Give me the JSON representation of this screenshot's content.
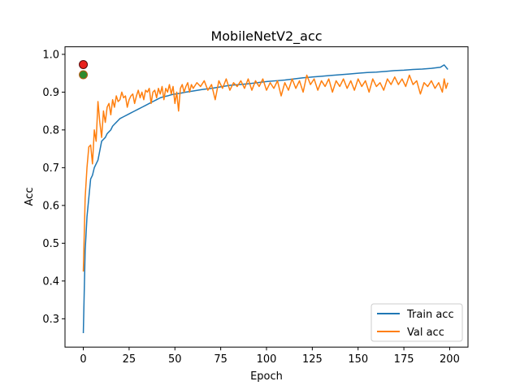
{
  "chart_data": {
    "type": "line",
    "title": "MobileNetV2_acc",
    "xlabel": "Epoch",
    "ylabel": "Acc",
    "xlim": [
      -10,
      210
    ],
    "ylim": [
      0.225,
      1.02
    ],
    "x_ticks": [
      0,
      25,
      50,
      75,
      100,
      125,
      150,
      175,
      200
    ],
    "y_ticks": [
      0.3,
      0.4,
      0.5,
      0.6,
      0.7,
      0.8,
      0.9,
      1.0
    ],
    "x_tick_labels": [
      "0",
      "25",
      "50",
      "75",
      "100",
      "125",
      "150",
      "175",
      "200"
    ],
    "y_tick_labels": [
      "0.3",
      "0.4",
      "0.5",
      "0.6",
      "0.7",
      "0.8",
      "0.9",
      "1.0"
    ],
    "grid": false,
    "legend_position": "lower-right",
    "series": [
      {
        "name": "Train acc",
        "color": "#1f77b4",
        "points": [
          [
            0,
            0.262
          ],
          [
            1,
            0.48
          ],
          [
            2,
            0.57
          ],
          [
            3,
            0.62
          ],
          [
            4,
            0.67
          ],
          [
            5,
            0.68
          ],
          [
            6,
            0.7
          ],
          [
            7,
            0.71
          ],
          [
            8,
            0.72
          ],
          [
            9,
            0.745
          ],
          [
            10,
            0.77
          ],
          [
            11,
            0.775
          ],
          [
            12,
            0.78
          ],
          [
            13,
            0.79
          ],
          [
            14,
            0.795
          ],
          [
            15,
            0.8
          ],
          [
            16,
            0.81
          ],
          [
            17,
            0.815
          ],
          [
            18,
            0.82
          ],
          [
            19,
            0.825
          ],
          [
            20,
            0.83
          ],
          [
            22,
            0.835
          ],
          [
            24,
            0.84
          ],
          [
            26,
            0.845
          ],
          [
            28,
            0.85
          ],
          [
            30,
            0.855
          ],
          [
            32,
            0.86
          ],
          [
            34,
            0.865
          ],
          [
            36,
            0.87
          ],
          [
            38,
            0.875
          ],
          [
            40,
            0.88
          ],
          [
            42,
            0.885
          ],
          [
            44,
            0.888
          ],
          [
            46,
            0.89
          ],
          [
            48,
            0.893
          ],
          [
            50,
            0.895
          ],
          [
            53,
            0.897
          ],
          [
            56,
            0.9
          ],
          [
            60,
            0.903
          ],
          [
            65,
            0.907
          ],
          [
            70,
            0.91
          ],
          [
            75,
            0.914
          ],
          [
            80,
            0.918
          ],
          [
            85,
            0.92
          ],
          [
            90,
            0.922
          ],
          [
            95,
            0.925
          ],
          [
            100,
            0.928
          ],
          [
            105,
            0.93
          ],
          [
            110,
            0.932
          ],
          [
            115,
            0.935
          ],
          [
            120,
            0.938
          ],
          [
            125,
            0.94
          ],
          [
            130,
            0.942
          ],
          [
            135,
            0.944
          ],
          [
            140,
            0.946
          ],
          [
            145,
            0.948
          ],
          [
            150,
            0.95
          ],
          [
            155,
            0.952
          ],
          [
            160,
            0.953
          ],
          [
            165,
            0.955
          ],
          [
            170,
            0.957
          ],
          [
            175,
            0.958
          ],
          [
            180,
            0.96
          ],
          [
            185,
            0.961
          ],
          [
            190,
            0.963
          ],
          [
            195,
            0.966
          ],
          [
            197,
            0.972
          ],
          [
            199,
            0.96
          ]
        ]
      },
      {
        "name": "Val acc",
        "color": "#ff7f0e",
        "points": [
          [
            0,
            0.425
          ],
          [
            1,
            0.62
          ],
          [
            2,
            0.7
          ],
          [
            3,
            0.755
          ],
          [
            4,
            0.76
          ],
          [
            5,
            0.71
          ],
          [
            6,
            0.8
          ],
          [
            7,
            0.77
          ],
          [
            8,
            0.875
          ],
          [
            9,
            0.82
          ],
          [
            10,
            0.78
          ],
          [
            11,
            0.85
          ],
          [
            12,
            0.82
          ],
          [
            13,
            0.86
          ],
          [
            14,
            0.87
          ],
          [
            15,
            0.84
          ],
          [
            16,
            0.88
          ],
          [
            17,
            0.86
          ],
          [
            18,
            0.89
          ],
          [
            19,
            0.875
          ],
          [
            20,
            0.88
          ],
          [
            21,
            0.9
          ],
          [
            22,
            0.885
          ],
          [
            23,
            0.89
          ],
          [
            24,
            0.86
          ],
          [
            25,
            0.88
          ],
          [
            26,
            0.89
          ],
          [
            27,
            0.895
          ],
          [
            28,
            0.87
          ],
          [
            29,
            0.89
          ],
          [
            30,
            0.905
          ],
          [
            31,
            0.885
          ],
          [
            32,
            0.9
          ],
          [
            33,
            0.88
          ],
          [
            34,
            0.905
          ],
          [
            35,
            0.9
          ],
          [
            36,
            0.91
          ],
          [
            37,
            0.87
          ],
          [
            38,
            0.9
          ],
          [
            39,
            0.905
          ],
          [
            40,
            0.885
          ],
          [
            41,
            0.91
          ],
          [
            42,
            0.895
          ],
          [
            43,
            0.915
          ],
          [
            44,
            0.88
          ],
          [
            45,
            0.91
          ],
          [
            46,
            0.9
          ],
          [
            47,
            0.92
          ],
          [
            48,
            0.895
          ],
          [
            49,
            0.915
          ],
          [
            50,
            0.87
          ],
          [
            51,
            0.9
          ],
          [
            52,
            0.85
          ],
          [
            53,
            0.91
          ],
          [
            54,
            0.92
          ],
          [
            55,
            0.9
          ],
          [
            56,
            0.915
          ],
          [
            57,
            0.925
          ],
          [
            58,
            0.9
          ],
          [
            59,
            0.92
          ],
          [
            60,
            0.91
          ],
          [
            62,
            0.925
          ],
          [
            64,
            0.915
          ],
          [
            66,
            0.93
          ],
          [
            68,
            0.905
          ],
          [
            70,
            0.92
          ],
          [
            72,
            0.88
          ],
          [
            74,
            0.93
          ],
          [
            76,
            0.91
          ],
          [
            78,
            0.935
          ],
          [
            80,
            0.905
          ],
          [
            82,
            0.925
          ],
          [
            84,
            0.915
          ],
          [
            86,
            0.93
          ],
          [
            88,
            0.91
          ],
          [
            90,
            0.935
          ],
          [
            92,
            0.905
          ],
          [
            94,
            0.93
          ],
          [
            96,
            0.915
          ],
          [
            98,
            0.935
          ],
          [
            100,
            0.905
          ],
          [
            102,
            0.925
          ],
          [
            104,
            0.91
          ],
          [
            106,
            0.93
          ],
          [
            108,
            0.89
          ],
          [
            110,
            0.925
          ],
          [
            112,
            0.905
          ],
          [
            114,
            0.935
          ],
          [
            116,
            0.91
          ],
          [
            118,
            0.93
          ],
          [
            120,
            0.9
          ],
          [
            122,
            0.945
          ],
          [
            124,
            0.92
          ],
          [
            126,
            0.935
          ],
          [
            128,
            0.905
          ],
          [
            130,
            0.93
          ],
          [
            132,
            0.915
          ],
          [
            134,
            0.935
          ],
          [
            136,
            0.9
          ],
          [
            138,
            0.93
          ],
          [
            140,
            0.915
          ],
          [
            142,
            0.935
          ],
          [
            144,
            0.91
          ],
          [
            146,
            0.93
          ],
          [
            148,
            0.905
          ],
          [
            150,
            0.935
          ],
          [
            152,
            0.915
          ],
          [
            154,
            0.93
          ],
          [
            156,
            0.9
          ],
          [
            158,
            0.935
          ],
          [
            160,
            0.915
          ],
          [
            162,
            0.925
          ],
          [
            164,
            0.905
          ],
          [
            166,
            0.935
          ],
          [
            168,
            0.92
          ],
          [
            170,
            0.94
          ],
          [
            172,
            0.92
          ],
          [
            174,
            0.935
          ],
          [
            176,
            0.915
          ],
          [
            178,
            0.945
          ],
          [
            180,
            0.92
          ],
          [
            182,
            0.93
          ],
          [
            184,
            0.895
          ],
          [
            186,
            0.925
          ],
          [
            188,
            0.915
          ],
          [
            190,
            0.93
          ],
          [
            192,
            0.91
          ],
          [
            194,
            0.925
          ],
          [
            196,
            0.9
          ],
          [
            197,
            0.935
          ],
          [
            198,
            0.91
          ],
          [
            199,
            0.925
          ]
        ]
      }
    ],
    "markers": [
      {
        "x": 0,
        "y": 0.973,
        "fill": "#e8211d",
        "stroke": "#5a0a0a"
      },
      {
        "x": 0,
        "y": 0.946,
        "fill": "#2e8b2e",
        "stroke": "#b35a10"
      }
    ]
  }
}
